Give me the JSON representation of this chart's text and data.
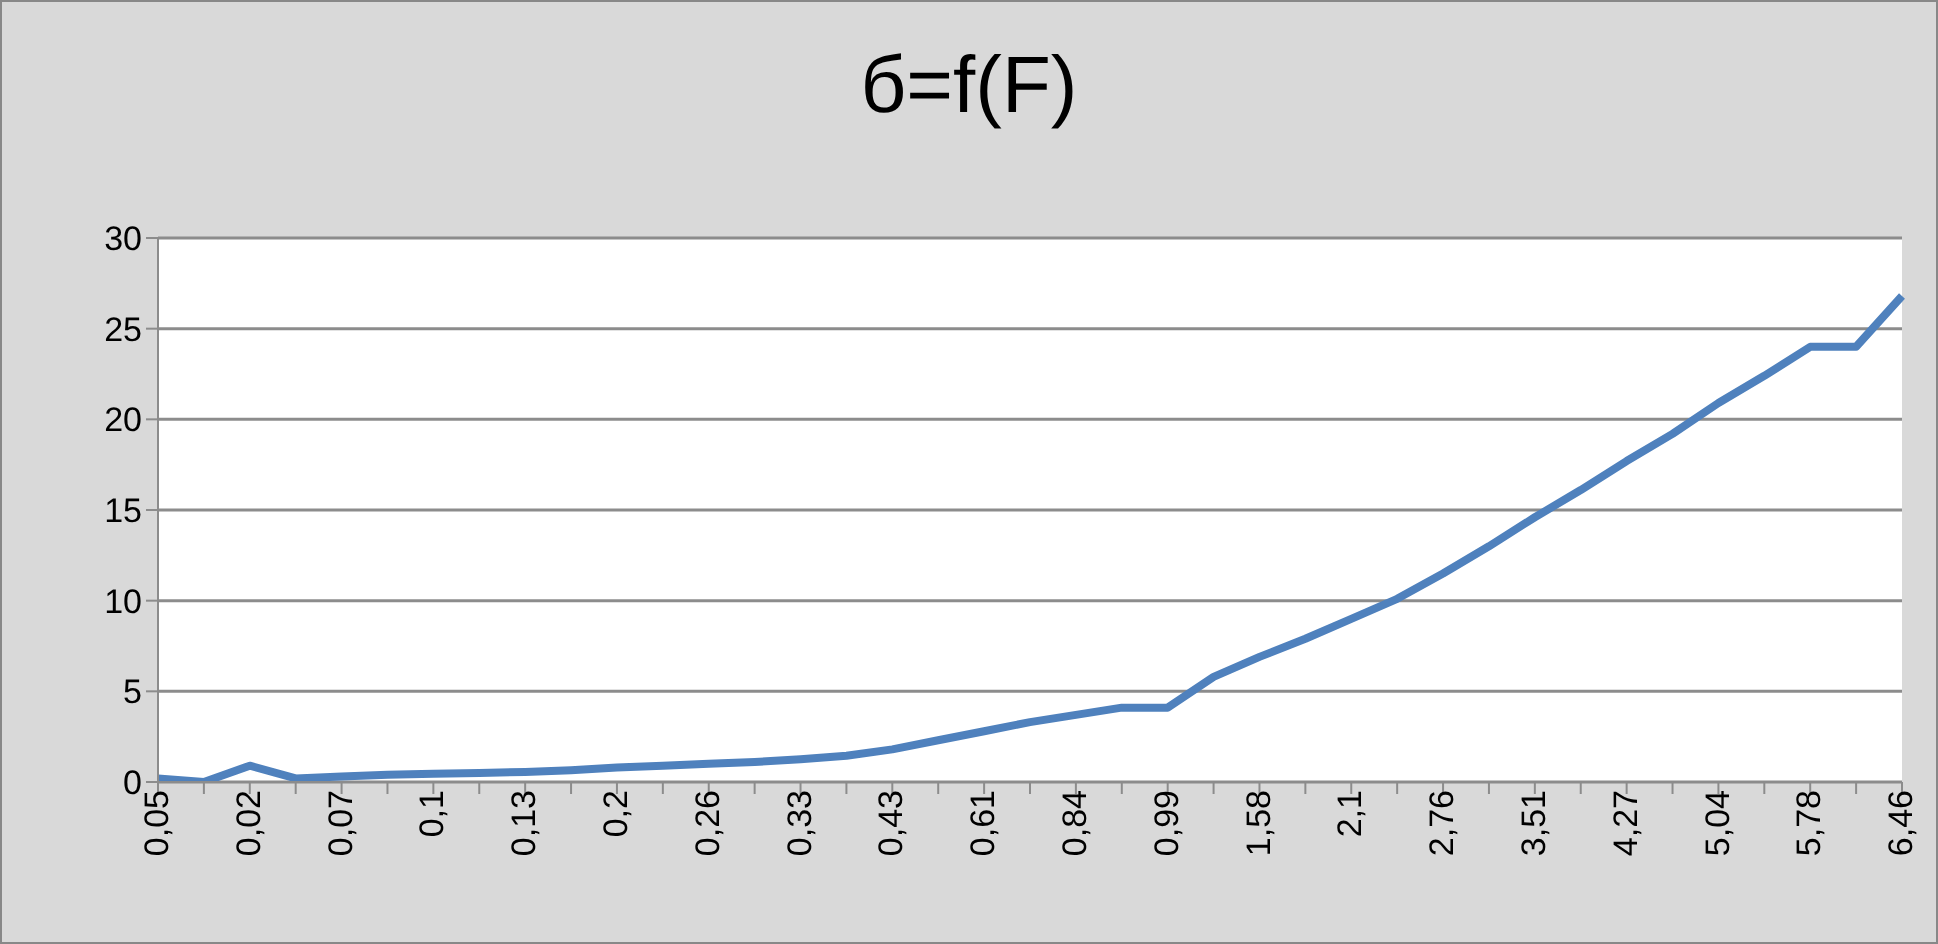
{
  "chart_data": {
    "type": "line",
    "title": "б=f(F)",
    "categories": [
      "0,05",
      null,
      "0,02",
      null,
      "0,07",
      null,
      "0,1",
      null,
      "0,13",
      null,
      "0,2",
      null,
      "0,26",
      null,
      "0,33",
      null,
      "0,43",
      null,
      "0,61",
      null,
      "0,84",
      null,
      "0,99",
      null,
      "1,58",
      null,
      "2,1",
      null,
      "2,76",
      null,
      "3,51",
      null,
      "4,27",
      null,
      "5,04",
      null,
      "5,78",
      null,
      "6,46"
    ],
    "series": [
      {
        "color": "#4f81bd",
        "values": [
          0.2,
          0.0,
          0.9,
          0.2,
          0.3,
          0.4,
          0.45,
          0.5,
          0.55,
          0.65,
          0.8,
          0.9,
          1.0,
          1.1,
          1.25,
          1.45,
          1.8,
          2.3,
          2.8,
          3.3,
          3.7,
          4.1,
          4.1,
          5.8,
          6.9,
          7.9,
          9.0,
          10.1,
          11.5,
          13.0,
          14.6,
          16.1,
          17.7,
          19.2,
          20.9,
          22.4,
          24.0,
          24.0,
          26.8
        ]
      }
    ],
    "ylim": [
      0,
      30
    ],
    "yticks": [
      0,
      5,
      10,
      15,
      20,
      25,
      30
    ],
    "grid": "y",
    "marker": "none",
    "line_style": "solid"
  }
}
